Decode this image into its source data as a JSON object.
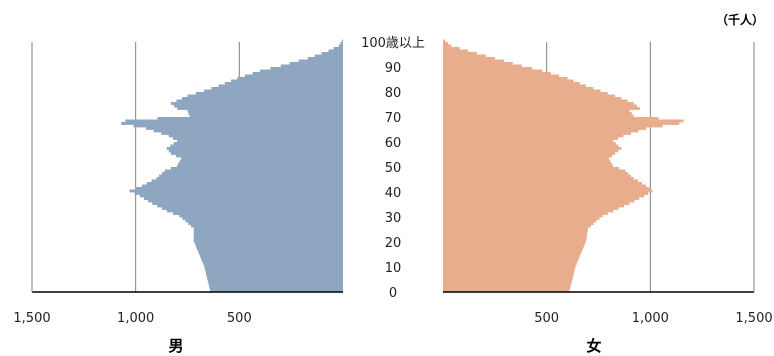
{
  "chart_data": {
    "type": "bar",
    "subtype": "population-pyramid",
    "unit_label": "（千人）",
    "y_ticks": [
      "0",
      "10",
      "20",
      "30",
      "40",
      "50",
      "60",
      "70",
      "80",
      "90",
      "100歳以上"
    ],
    "x_tick_labels_left": [
      "1,500",
      "1,000",
      "500"
    ],
    "x_tick_labels_right": [
      "500",
      "1,000",
      "1,500"
    ],
    "xlim": [
      0,
      1500
    ],
    "ylim": [
      0,
      100
    ],
    "grid": true,
    "colors": {
      "male": "#8fa6c0",
      "female": "#e8ad8c",
      "axis": "#000000",
      "grid": "#808080"
    },
    "series": [
      {
        "name": "男",
        "ages": [
          0,
          10,
          20,
          25,
          28,
          30,
          32,
          35,
          38,
          40,
          42,
          45,
          48,
          50,
          53,
          55,
          57,
          60,
          62,
          65,
          67,
          68,
          70,
          72,
          73,
          75,
          78,
          80,
          82,
          85,
          88,
          90,
          93,
          96,
          98,
          100
        ],
        "values": [
          640,
          670,
          720,
          720,
          760,
          790,
          850,
          920,
          980,
          1030,
          970,
          900,
          860,
          800,
          780,
          830,
          850,
          800,
          840,
          950,
          1070,
          1050,
          740,
          750,
          800,
          830,
          750,
          670,
          600,
          510,
          400,
          300,
          170,
          70,
          20,
          5
        ]
      },
      {
        "name": "女",
        "ages": [
          0,
          10,
          20,
          25,
          28,
          30,
          32,
          35,
          38,
          40,
          42,
          45,
          48,
          50,
          53,
          55,
          57,
          60,
          62,
          65,
          67,
          68,
          70,
          72,
          73,
          75,
          78,
          80,
          82,
          85,
          88,
          90,
          93,
          96,
          98,
          100
        ],
        "values": [
          610,
          640,
          690,
          700,
          740,
          770,
          820,
          900,
          970,
          1010,
          980,
          920,
          880,
          820,
          800,
          830,
          860,
          820,
          870,
          980,
          1140,
          1160,
          920,
          900,
          950,
          920,
          830,
          760,
          690,
          600,
          480,
          380,
          250,
          120,
          40,
          10
        ]
      }
    ]
  }
}
